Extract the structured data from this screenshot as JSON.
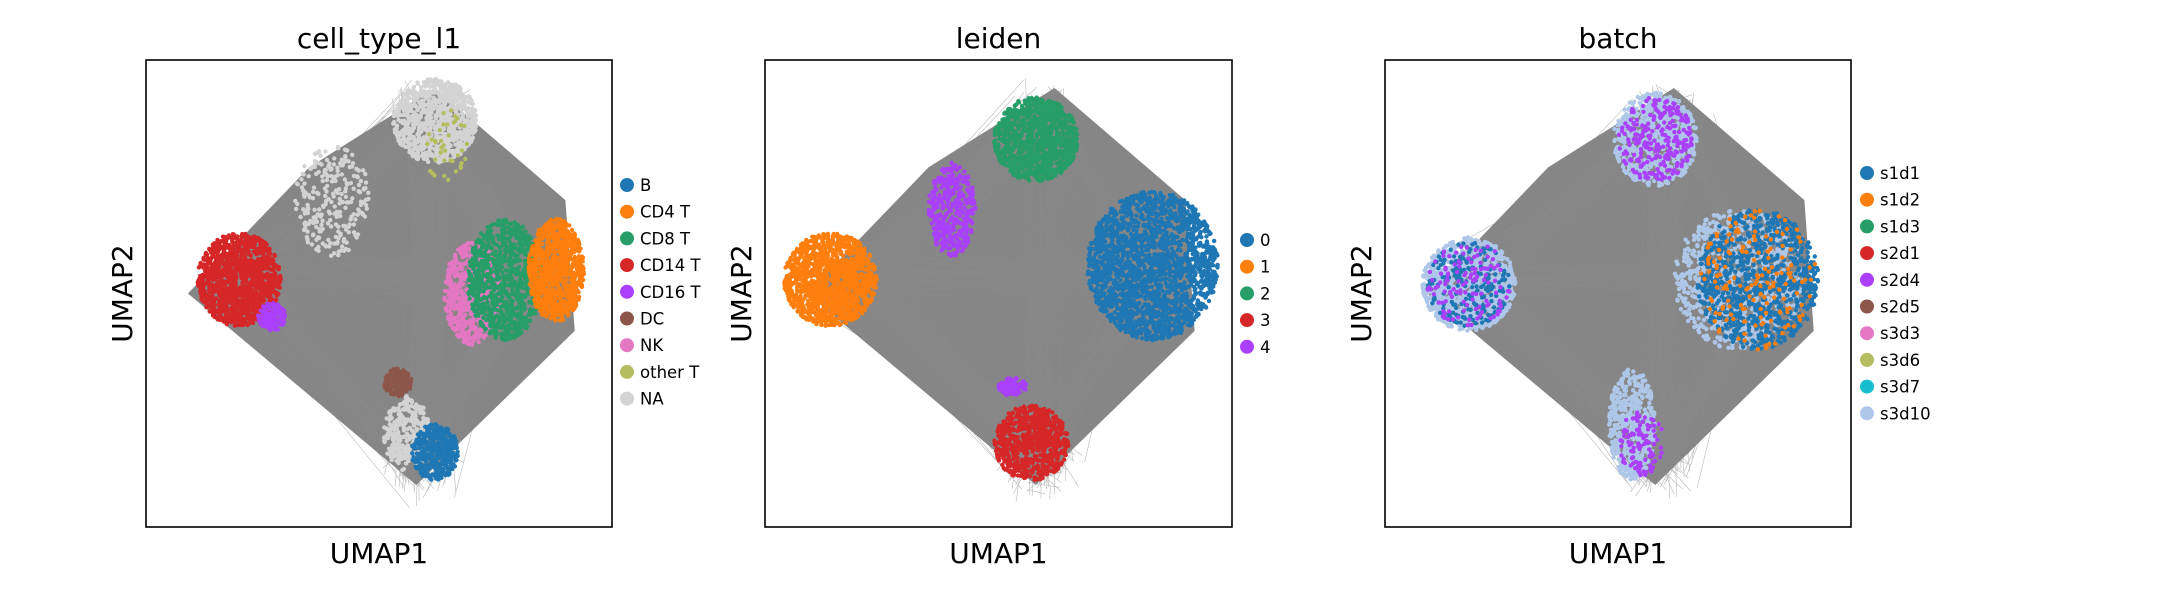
{
  "chart_data": [
    {
      "type": "scatter",
      "title": "cell_type_l1",
      "xlabel": "UMAP1",
      "ylabel": "UMAP2",
      "xticks": [],
      "yticks": [],
      "grid": false,
      "legend_position": "right",
      "background_edges_color": "#808080",
      "series": [
        {
          "name": "B",
          "color": "#1f77b4"
        },
        {
          "name": "CD4 T",
          "color": "#ff7f0e"
        },
        {
          "name": "CD8 T",
          "color": "#279e68"
        },
        {
          "name": "CD14 T",
          "color": "#d62728"
        },
        {
          "name": "CD16 T",
          "color": "#aa40fc"
        },
        {
          "name": "DC",
          "color": "#8c564b"
        },
        {
          "name": "NK",
          "color": "#e377c2"
        },
        {
          "name": "other T",
          "color": "#b5bd61"
        },
        {
          "name": "NA",
          "color": "#d3d3d3"
        }
      ]
    },
    {
      "type": "scatter",
      "title": "leiden",
      "xlabel": "UMAP1",
      "ylabel": "UMAP2",
      "xticks": [],
      "yticks": [],
      "grid": false,
      "legend_position": "right",
      "background_edges_color": "#808080",
      "series": [
        {
          "name": "0",
          "color": "#1f77b4"
        },
        {
          "name": "1",
          "color": "#ff7f0e"
        },
        {
          "name": "2",
          "color": "#279e68"
        },
        {
          "name": "3",
          "color": "#d62728"
        },
        {
          "name": "4",
          "color": "#aa40fc"
        }
      ]
    },
    {
      "type": "scatter",
      "title": "batch",
      "xlabel": "UMAP1",
      "ylabel": "UMAP2",
      "xticks": [],
      "yticks": [],
      "grid": false,
      "legend_position": "right",
      "background_edges_color": "#808080",
      "series": [
        {
          "name": "s1d1",
          "color": "#1f77b4"
        },
        {
          "name": "s1d2",
          "color": "#ff7f0e"
        },
        {
          "name": "s1d3",
          "color": "#279e68"
        },
        {
          "name": "s2d1",
          "color": "#d62728"
        },
        {
          "name": "s2d4",
          "color": "#aa40fc"
        },
        {
          "name": "s2d5",
          "color": "#8c564b"
        },
        {
          "name": "s3d3",
          "color": "#e377c2"
        },
        {
          "name": "s3d6",
          "color": "#b5bd61"
        },
        {
          "name": "s3d7",
          "color": "#17becf"
        },
        {
          "name": "s3d10",
          "color": "#aec7e8"
        }
      ]
    }
  ]
}
